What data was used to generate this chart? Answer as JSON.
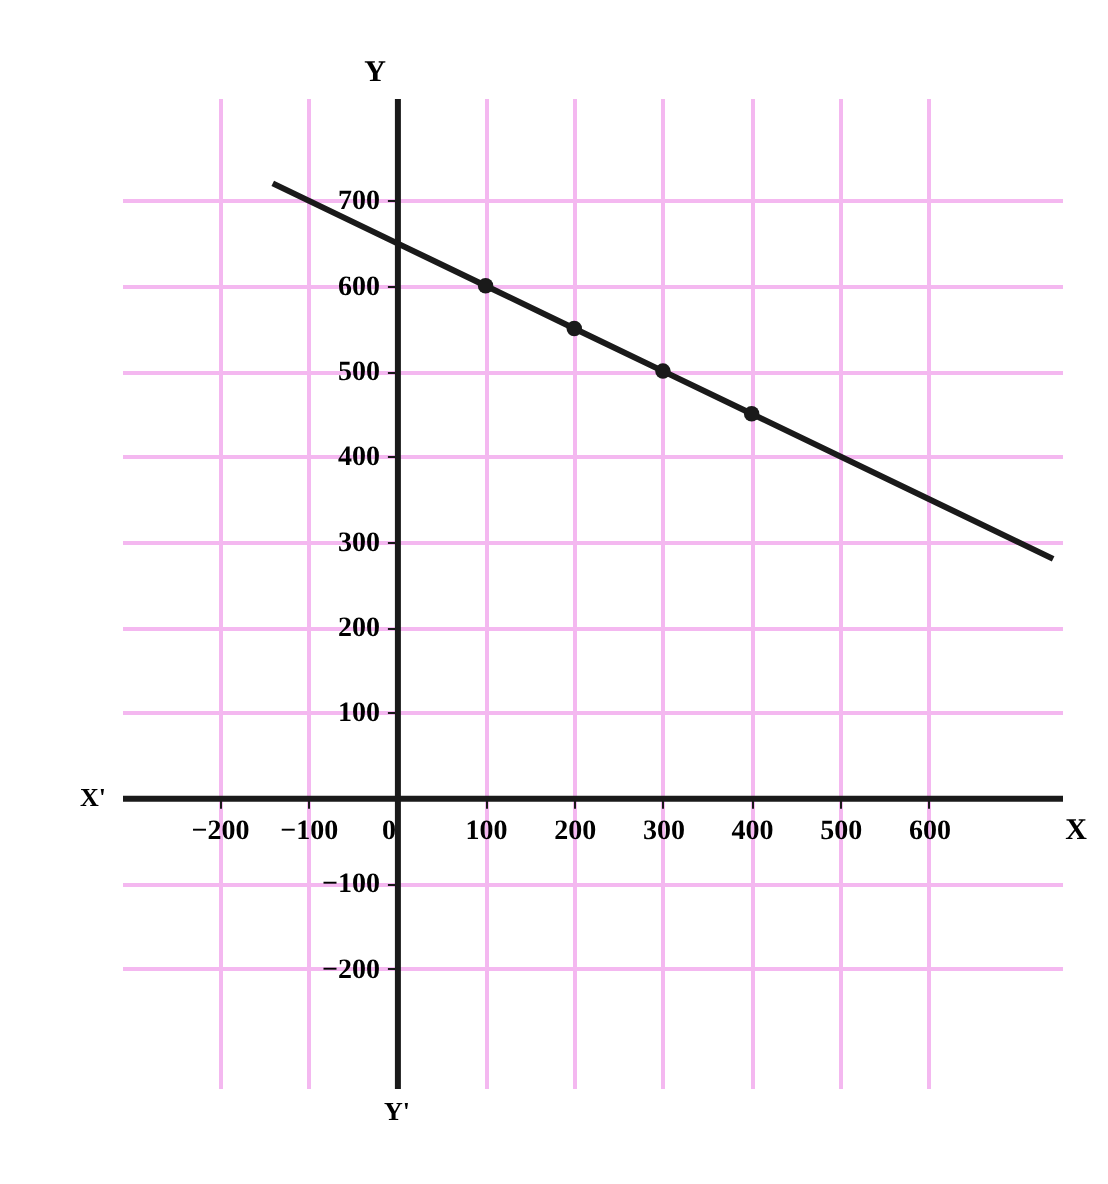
{
  "chart_data": {
    "type": "line",
    "xlabel": "X",
    "ylabel": "Y",
    "annotations": [
      "X'",
      "Y'"
    ],
    "series": [
      {
        "color": "#1a1a1a",
        "x": [
          -140,
          0,
          100,
          200,
          300,
          400,
          740
        ],
        "values": [
          720,
          650,
          600,
          550,
          500,
          450,
          280
        ],
        "marker": "none"
      },
      {
        "type": "scatter",
        "color": "#1a1a1a",
        "x": [
          100,
          200,
          300,
          400
        ],
        "values": [
          600,
          550,
          500,
          450
        ],
        "marker": "circle"
      }
    ],
    "xlim": [
      -310,
      750
    ],
    "ylim": [
      -340,
      820
    ],
    "xticks": [
      -200,
      -100,
      0,
      100,
      200,
      300,
      400,
      500,
      600
    ],
    "yticks": [
      -200,
      -100,
      100,
      200,
      300,
      400,
      500,
      600,
      700
    ],
    "grid": true
  }
}
